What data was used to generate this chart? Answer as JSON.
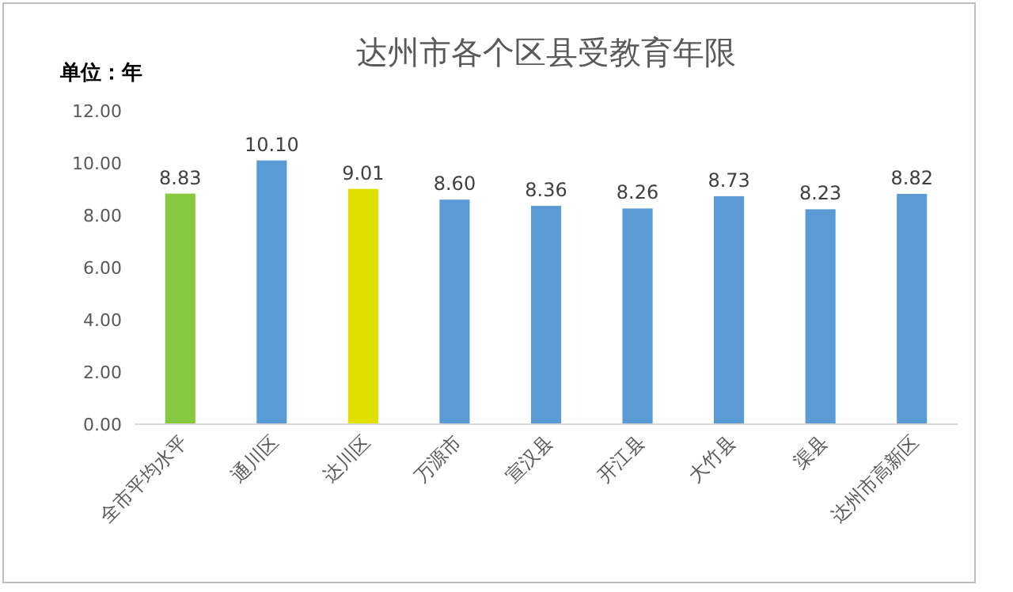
{
  "chart_data": {
    "type": "bar",
    "title": "达州市各个区县受教育年限",
    "ylabel": "单位：年",
    "categories": [
      "全市平均水平",
      "通川区",
      "达川区",
      "万源市",
      "宣汉县",
      "开江县",
      "大竹县",
      "渠县",
      "达州市高新区"
    ],
    "values": [
      8.83,
      10.1,
      9.01,
      8.6,
      8.36,
      8.26,
      8.73,
      8.23,
      8.82
    ],
    "colors": [
      "#86c940",
      "#5b9bd5",
      "#e0e000",
      "#5b9bd5",
      "#5b9bd5",
      "#5b9bd5",
      "#5b9bd5",
      "#5b9bd5",
      "#5b9bd5"
    ],
    "value_labels": [
      "8.83",
      "10.10",
      "9.01",
      "8.60",
      "8.36",
      "8.26",
      "8.73",
      "8.23",
      "8.82"
    ],
    "ylim": [
      0,
      12
    ],
    "yticks": [
      {
        "value": 0,
        "label": "0.00"
      },
      {
        "value": 2,
        "label": "2.00"
      },
      {
        "value": 4,
        "label": "4.00"
      },
      {
        "value": 6,
        "label": "6.00"
      },
      {
        "value": 8,
        "label": "8.00"
      },
      {
        "value": 10,
        "label": "10.00"
      },
      {
        "value": 12,
        "label": "12.00"
      }
    ],
    "grid": false
  }
}
